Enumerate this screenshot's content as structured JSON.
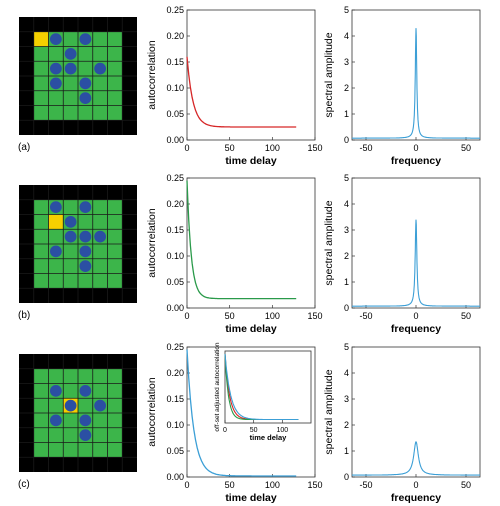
{
  "panels": [
    {
      "label": "(a)",
      "grid": {
        "size": 8,
        "highlight": [
          1,
          1
        ],
        "circles": [
          [
            1,
            2
          ],
          [
            1,
            4
          ],
          [
            2,
            3
          ],
          [
            3,
            2
          ],
          [
            3,
            3
          ],
          [
            3,
            5
          ],
          [
            4,
            2
          ],
          [
            4,
            4
          ],
          [
            5,
            4
          ]
        ],
        "colors": {
          "border": "#000000",
          "interior": "#3cb54a",
          "highlight": "#f5d000",
          "circle": "#2b4fa3",
          "line": "#1a1a1a"
        }
      },
      "autocorr": {
        "chart_data": {
          "type": "line",
          "xlabel": "time delay",
          "ylabel": "autocorrelation",
          "xlim": [
            0,
            150
          ],
          "ylim": [
            0,
            0.25
          ],
          "xticks": [
            0,
            50,
            100,
            150
          ],
          "yticks": [
            0,
            0.05,
            0.1,
            0.15,
            0.2,
            0.25
          ],
          "ytick_labels": [
            "0.00",
            "0.05",
            "0.10",
            "0.15",
            "0.20",
            "0.25"
          ],
          "series": [
            {
              "color": "#d62728",
              "start": 0.16,
              "floor": 0.025,
              "tau": 7,
              "x_end": 128
            }
          ]
        }
      },
      "spectrum": {
        "chart_data": {
          "type": "line",
          "xlabel": "frequency",
          "ylabel": "spectral amplitude",
          "xlim": [
            -64,
            64
          ],
          "ylim": [
            0,
            5
          ],
          "xticks": [
            -50,
            0,
            50
          ],
          "yticks": [
            0,
            1,
            2,
            3,
            4,
            5
          ],
          "ytick_labels": [
            "0",
            "1",
            "2",
            "3",
            "4",
            "5"
          ],
          "series": [
            {
              "color": "#3c9fd6",
              "peak": 4.3,
              "base": 0.07,
              "width": 0.9
            }
          ]
        }
      }
    },
    {
      "label": "(b)",
      "grid": {
        "size": 8,
        "highlight": [
          2,
          2
        ],
        "circles": [
          [
            1,
            2
          ],
          [
            1,
            4
          ],
          [
            2,
            3
          ],
          [
            3,
            3
          ],
          [
            3,
            4
          ],
          [
            3,
            5
          ],
          [
            4,
            2
          ],
          [
            4,
            4
          ],
          [
            5,
            4
          ]
        ],
        "colors": {
          "border": "#000000",
          "interior": "#3cb54a",
          "highlight": "#f5d000",
          "circle": "#2b4fa3",
          "line": "#1a1a1a"
        }
      },
      "autocorr": {
        "chart_data": {
          "type": "line",
          "xlabel": "time delay",
          "ylabel": "autocorrelation",
          "xlim": [
            0,
            150
          ],
          "ylim": [
            0,
            0.25
          ],
          "xticks": [
            0,
            50,
            100,
            150
          ],
          "yticks": [
            0,
            0.05,
            0.1,
            0.15,
            0.2,
            0.25
          ],
          "ytick_labels": [
            "0.00",
            "0.05",
            "0.10",
            "0.15",
            "0.20",
            "0.25"
          ],
          "series": [
            {
              "color": "#2a9a4a",
              "start": 0.245,
              "floor": 0.018,
              "tau": 5,
              "x_end": 128
            }
          ]
        }
      },
      "spectrum": {
        "chart_data": {
          "type": "line",
          "xlabel": "frequency",
          "ylabel": "spectral amplitude",
          "xlim": [
            -64,
            64
          ],
          "ylim": [
            0,
            5
          ],
          "xticks": [
            -50,
            0,
            50
          ],
          "yticks": [
            0,
            1,
            2,
            3,
            4,
            5
          ],
          "ytick_labels": [
            "0",
            "1",
            "2",
            "3",
            "4",
            "5"
          ],
          "series": [
            {
              "color": "#3c9fd6",
              "peak": 3.4,
              "base": 0.07,
              "width": 1.0
            }
          ]
        }
      }
    },
    {
      "label": "(c)",
      "grid": {
        "size": 8,
        "highlight": [
          3,
          3
        ],
        "circles": [
          [
            2,
            2
          ],
          [
            2,
            4
          ],
          [
            3,
            3
          ],
          [
            3,
            5
          ],
          [
            4,
            2
          ],
          [
            4,
            4
          ],
          [
            5,
            4
          ]
        ],
        "colors": {
          "border": "#000000",
          "interior": "#3cb54a",
          "highlight": "#f5d000",
          "circle": "#2b4fa3",
          "line": "#1a1a1a"
        }
      },
      "autocorr": {
        "chart_data": {
          "type": "line",
          "xlabel": "time delay",
          "ylabel": "autocorrelation",
          "xlim": [
            0,
            150
          ],
          "ylim": [
            0,
            0.25
          ],
          "xticks": [
            0,
            50,
            100,
            150
          ],
          "yticks": [
            0,
            0.05,
            0.1,
            0.15,
            0.2,
            0.25
          ],
          "ytick_labels": [
            "0.00",
            "0.05",
            "0.10",
            "0.15",
            "0.20",
            "0.25"
          ],
          "series": [
            {
              "color": "#3c9fd6",
              "start": 0.245,
              "floor": 0.002,
              "tau": 8,
              "x_end": 128
            }
          ]
        },
        "inset": {
          "chart_data": {
            "type": "line",
            "xlabel": "time delay",
            "ylabel": "off-set adjusted autocorrelation",
            "xlim": [
              0,
              150
            ],
            "ylim": [
              0,
              0.25
            ],
            "xticks": [
              0,
              50,
              100
            ],
            "series": [
              {
                "color": "#d62728",
                "start": 0.24,
                "floor": 0.012,
                "tau": 8,
                "x_end": 128
              },
              {
                "color": "#2a9a4a",
                "start": 0.24,
                "floor": 0.012,
                "tau": 6,
                "x_end": 128
              },
              {
                "color": "#3c9fd6",
                "start": 0.24,
                "floor": 0.012,
                "tau": 10,
                "x_end": 128
              }
            ]
          }
        }
      },
      "spectrum": {
        "chart_data": {
          "type": "line",
          "xlabel": "frequency",
          "ylabel": "spectral amplitude",
          "xlim": [
            -64,
            64
          ],
          "ylim": [
            0,
            5
          ],
          "xticks": [
            -50,
            0,
            50
          ],
          "yticks": [
            0,
            1,
            2,
            3,
            4,
            5
          ],
          "ytick_labels": [
            "0",
            "1",
            "2",
            "3",
            "4",
            "5"
          ],
          "series": [
            {
              "color": "#3c9fd6",
              "peak": 1.35,
              "base": 0.07,
              "width": 2.8
            }
          ]
        }
      }
    }
  ]
}
